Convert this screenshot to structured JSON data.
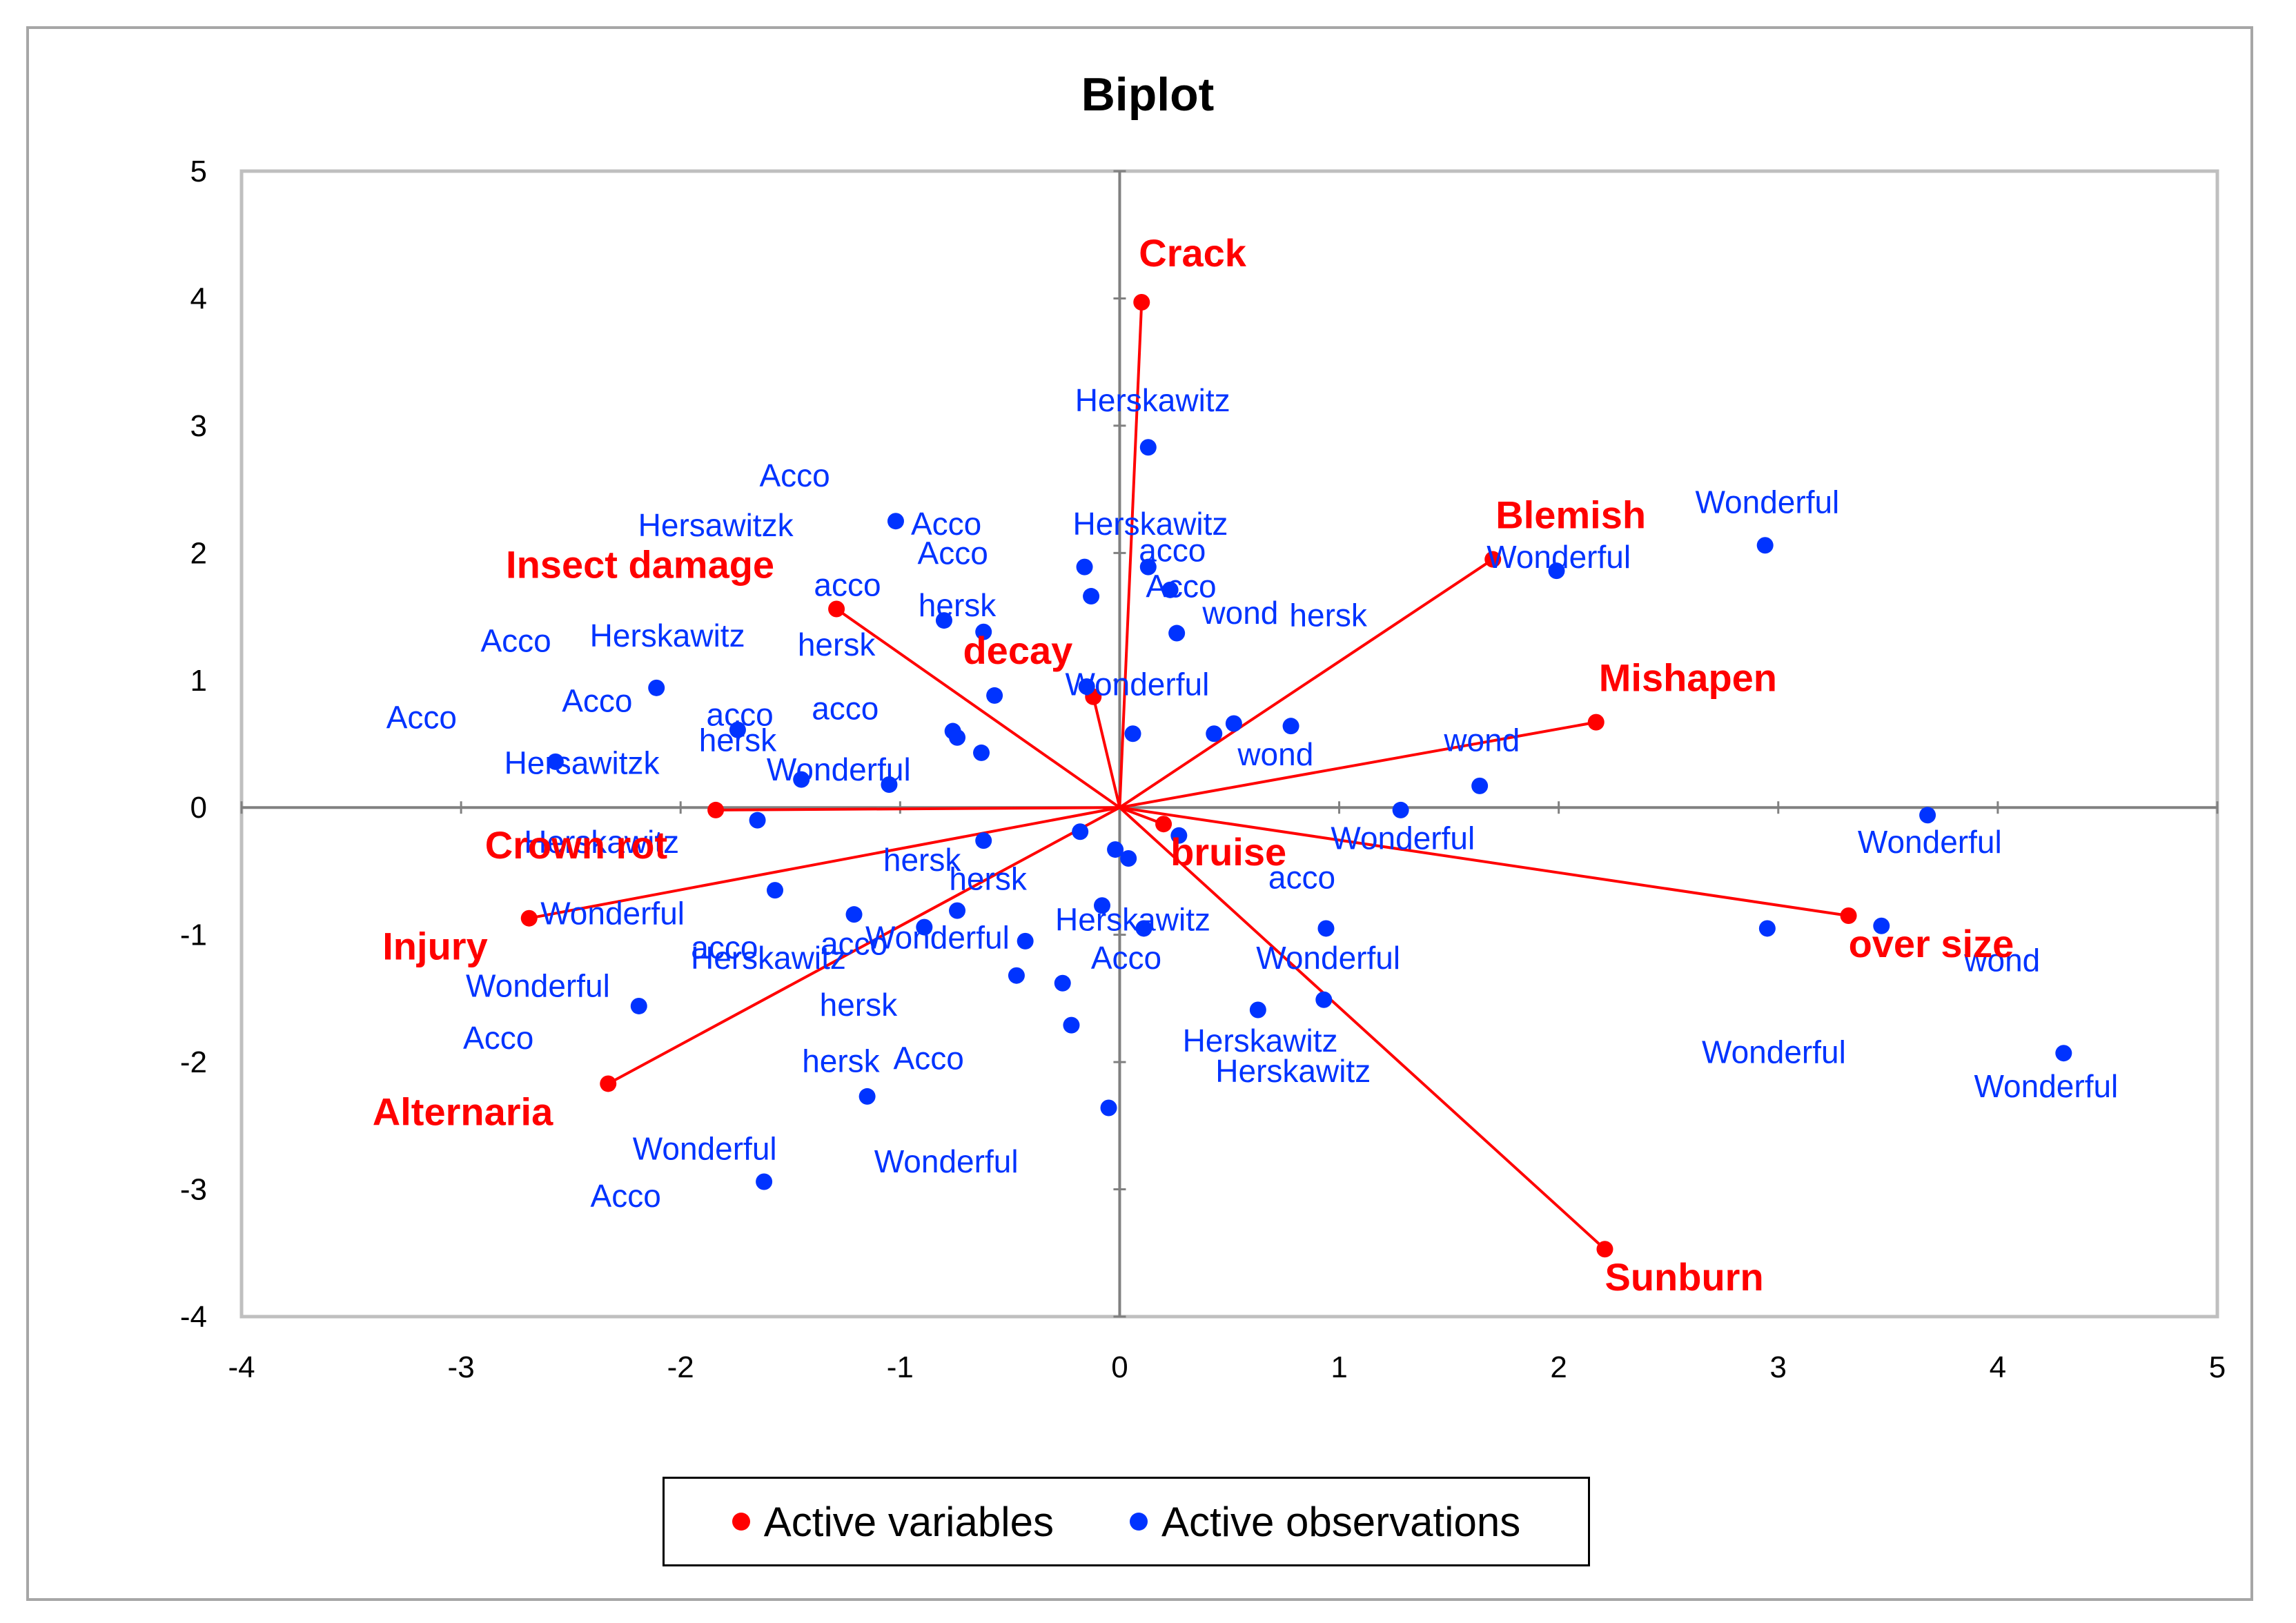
{
  "colors": {
    "variables": "#ff0000",
    "observations": "#0033ff",
    "axis": "#808080",
    "plot_border": "#bfbfbf"
  },
  "chart_data": {
    "type": "scatter",
    "title": "Biplot",
    "xlabel": "",
    "ylabel": "",
    "xlim": [
      -4,
      5
    ],
    "ylim": [
      -4,
      5
    ],
    "xticks": [
      -4,
      -3,
      -2,
      -1,
      0,
      1,
      2,
      3,
      4,
      5
    ],
    "yticks": [
      -4,
      -3,
      -2,
      -1,
      0,
      1,
      2,
      3,
      4,
      5
    ],
    "grid": false,
    "legend_position": "bottom",
    "legend": [
      "Active variables",
      "Active observations"
    ],
    "variables": [
      {
        "name": "Crack",
        "x": 0.1,
        "y": 3.97
      },
      {
        "name": "Blemish",
        "x": 1.7,
        "y": 1.95
      },
      {
        "name": "Mishapen",
        "x": 2.17,
        "y": 0.67
      },
      {
        "name": "over size",
        "x": 3.32,
        "y": -0.85
      },
      {
        "name": "Sunburn",
        "x": 2.21,
        "y": -3.47
      },
      {
        "name": "bruise",
        "x": 0.2,
        "y": -0.13
      },
      {
        "name": "decay",
        "x": -0.12,
        "y": 0.87
      },
      {
        "name": "Insect damage",
        "x": -1.29,
        "y": 1.56
      },
      {
        "name": "Crown rot",
        "x": -1.84,
        "y": -0.02
      },
      {
        "name": "Injury",
        "x": -2.69,
        "y": -0.87
      },
      {
        "name": "Alternaria",
        "x": -2.33,
        "y": -2.17
      }
    ],
    "observation_points": [
      {
        "x": 0.13,
        "y": 2.83
      },
      {
        "x": 2.94,
        "y": 2.06
      },
      {
        "x": 1.99,
        "y": 1.86
      },
      {
        "x": -1.02,
        "y": 2.25
      },
      {
        "x": -0.16,
        "y": 1.89
      },
      {
        "x": 0.13,
        "y": 1.89
      },
      {
        "x": -0.13,
        "y": 1.66
      },
      {
        "x": 0.23,
        "y": 1.71
      },
      {
        "x": -0.8,
        "y": 1.47
      },
      {
        "x": -0.62,
        "y": 1.38
      },
      {
        "x": 0.26,
        "y": 1.37
      },
      {
        "x": -2.11,
        "y": 0.94
      },
      {
        "x": -0.15,
        "y": 0.95
      },
      {
        "x": -0.57,
        "y": 0.88
      },
      {
        "x": 0.52,
        "y": 0.66
      },
      {
        "x": 0.78,
        "y": 0.64
      },
      {
        "x": 0.43,
        "y": 0.58
      },
      {
        "x": 0.06,
        "y": 0.58
      },
      {
        "x": -0.76,
        "y": 0.6
      },
      {
        "x": -0.74,
        "y": 0.55
      },
      {
        "x": -1.74,
        "y": 0.61
      },
      {
        "x": -0.63,
        "y": 0.43
      },
      {
        "x": -2.57,
        "y": 0.36
      },
      {
        "x": -1.45,
        "y": 0.22
      },
      {
        "x": -1.05,
        "y": 0.18
      },
      {
        "x": 1.64,
        "y": 0.17
      },
      {
        "x": 1.28,
        "y": -0.02
      },
      {
        "x": 3.68,
        "y": -0.06
      },
      {
        "x": -1.65,
        "y": -0.1
      },
      {
        "x": -0.18,
        "y": -0.19
      },
      {
        "x": 0.27,
        "y": -0.22
      },
      {
        "x": -0.62,
        "y": -0.26
      },
      {
        "x": -0.02,
        "y": -0.33
      },
      {
        "x": 0.04,
        "y": -0.4
      },
      {
        "x": -1.57,
        "y": -0.65
      },
      {
        "x": -0.08,
        "y": -0.77
      },
      {
        "x": -0.74,
        "y": -0.81
      },
      {
        "x": -1.21,
        "y": -0.84
      },
      {
        "x": -0.89,
        "y": -0.94
      },
      {
        "x": 0.11,
        "y": -0.95
      },
      {
        "x": 0.94,
        "y": -0.95
      },
      {
        "x": 2.95,
        "y": -0.95
      },
      {
        "x": 3.47,
        "y": -0.93
      },
      {
        "x": -0.43,
        "y": -1.05
      },
      {
        "x": -0.47,
        "y": -1.32
      },
      {
        "x": -0.26,
        "y": -1.38
      },
      {
        "x": 0.93,
        "y": -1.51
      },
      {
        "x": 0.63,
        "y": -1.59
      },
      {
        "x": -2.19,
        "y": -1.56
      },
      {
        "x": -0.22,
        "y": -1.71
      },
      {
        "x": 4.3,
        "y": -1.93
      },
      {
        "x": -1.15,
        "y": -2.27
      },
      {
        "x": -0.05,
        "y": -2.36
      },
      {
        "x": -1.62,
        "y": -2.94
      }
    ],
    "observation_labels": [
      {
        "text": "Herskawitz",
        "x": 0.15,
        "y": 3.2
      },
      {
        "text": "Wonderful",
        "x": 2.95,
        "y": 2.4
      },
      {
        "text": "Wonderful",
        "x": 2.0,
        "y": 1.97
      },
      {
        "text": "Acco",
        "x": -1.48,
        "y": 2.61
      },
      {
        "text": "Hersawitzk",
        "x": -1.84,
        "y": 2.22
      },
      {
        "text": "Acco",
        "x": -0.79,
        "y": 2.23
      },
      {
        "text": "Acco",
        "x": -0.76,
        "y": 2.0
      },
      {
        "text": "Herskawitz",
        "x": 0.14,
        "y": 2.23
      },
      {
        "text": "acco",
        "x": 0.24,
        "y": 2.02
      },
      {
        "text": "Acco",
        "x": 0.28,
        "y": 1.74
      },
      {
        "text": "acco",
        "x": -1.24,
        "y": 1.75
      },
      {
        "text": "hersk",
        "x": -0.74,
        "y": 1.59
      },
      {
        "text": "wond",
        "x": 0.55,
        "y": 1.53
      },
      {
        "text": "hersk",
        "x": 0.95,
        "y": 1.51
      },
      {
        "text": "Acco",
        "x": -2.75,
        "y": 1.31
      },
      {
        "text": "Herskawitz",
        "x": -2.06,
        "y": 1.35
      },
      {
        "text": "hersk",
        "x": -1.29,
        "y": 1.28
      },
      {
        "text": "Wonderful",
        "x": 0.08,
        "y": 0.97
      },
      {
        "text": "Acco",
        "x": -2.38,
        "y": 0.84
      },
      {
        "text": "acco",
        "x": -1.73,
        "y": 0.73
      },
      {
        "text": "acco",
        "x": -1.25,
        "y": 0.78
      },
      {
        "text": "Acco",
        "x": -3.18,
        "y": 0.71
      },
      {
        "text": "hersk",
        "x": -1.74,
        "y": 0.53
      },
      {
        "text": "Hersawitzk",
        "x": -2.45,
        "y": 0.35
      },
      {
        "text": "Wonderful",
        "x": -1.28,
        "y": 0.3
      },
      {
        "text": "wond",
        "x": 0.71,
        "y": 0.42
      },
      {
        "text": "wond",
        "x": 1.65,
        "y": 0.53
      },
      {
        "text": "Herskawitz",
        "x": -2.36,
        "y": -0.27
      },
      {
        "text": "Wonderful",
        "x": 1.29,
        "y": -0.24
      },
      {
        "text": "Wonderful",
        "x": 3.69,
        "y": -0.27
      },
      {
        "text": "hersk",
        "x": -0.9,
        "y": -0.41
      },
      {
        "text": "hersk",
        "x": -0.6,
        "y": -0.56
      },
      {
        "text": "acco",
        "x": 0.83,
        "y": -0.55
      },
      {
        "text": "Wonderful",
        "x": -2.31,
        "y": -0.83
      },
      {
        "text": "Herskawitz",
        "x": 0.06,
        "y": -0.88
      },
      {
        "text": "acco",
        "x": -1.8,
        "y": -1.1
      },
      {
        "text": "acco",
        "x": -1.21,
        "y": -1.07
      },
      {
        "text": "Herskawitz",
        "x": -1.6,
        "y": -1.18
      },
      {
        "text": "Wonderful",
        "x": -0.83,
        "y": -1.02
      },
      {
        "text": "Acco",
        "x": 0.03,
        "y": -1.18
      },
      {
        "text": "Wonderful",
        "x": 0.95,
        "y": -1.18
      },
      {
        "text": "wond",
        "x": 4.02,
        "y": -1.2
      },
      {
        "text": "Wonderful",
        "x": -2.65,
        "y": -1.4
      },
      {
        "text": "hersk",
        "x": -1.19,
        "y": -1.55
      },
      {
        "text": "Acco",
        "x": -2.83,
        "y": -1.81
      },
      {
        "text": "Herskawitz",
        "x": 0.64,
        "y": -1.83
      },
      {
        "text": "Herskawitz",
        "x": 0.79,
        "y": -2.07
      },
      {
        "text": "hersk",
        "x": -1.27,
        "y": -1.99
      },
      {
        "text": "Acco",
        "x": -0.87,
        "y": -1.97
      },
      {
        "text": "Wonderful",
        "x": 2.98,
        "y": -1.92
      },
      {
        "text": "Wonderful",
        "x": 4.22,
        "y": -2.19
      },
      {
        "text": "Wonderful",
        "x": -1.89,
        "y": -2.68
      },
      {
        "text": "Wonderful",
        "x": -0.79,
        "y": -2.78
      },
      {
        "text": "Acco",
        "x": -2.25,
        "y": -3.05
      }
    ]
  }
}
